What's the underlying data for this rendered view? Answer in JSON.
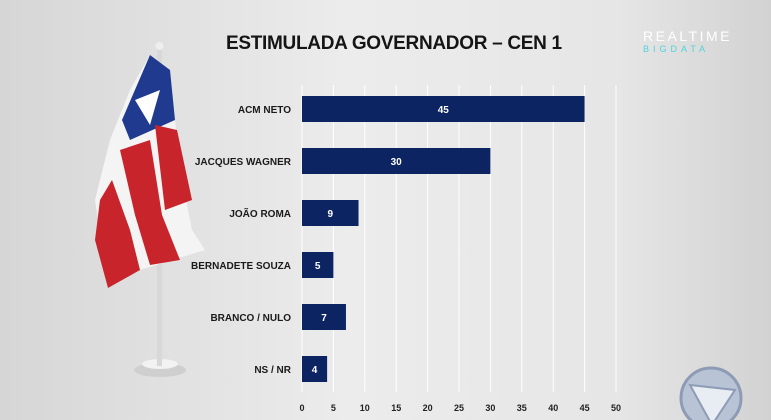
{
  "chart_data": {
    "type": "bar",
    "orientation": "horizontal",
    "title": "ESTIMULADA GOVERNADOR – CEN 1",
    "categories": [
      "ACM NETO",
      "JACQUES WAGNER",
      "JOÃO ROMA",
      "BERNADETE SOUZA",
      "BRANCO / NULO",
      "NS / NR"
    ],
    "values": [
      45,
      30,
      9,
      5,
      7,
      4
    ],
    "xlim": [
      0,
      50
    ],
    "xticks": [
      0,
      5,
      10,
      15,
      20,
      25,
      30,
      35,
      40,
      45,
      50
    ],
    "xlabel": "",
    "ylabel": "",
    "grid": true,
    "bar_color": "#0c2462"
  },
  "branding": {
    "logo_line1": "REALTIME",
    "logo_line2": "BIGDATA"
  }
}
